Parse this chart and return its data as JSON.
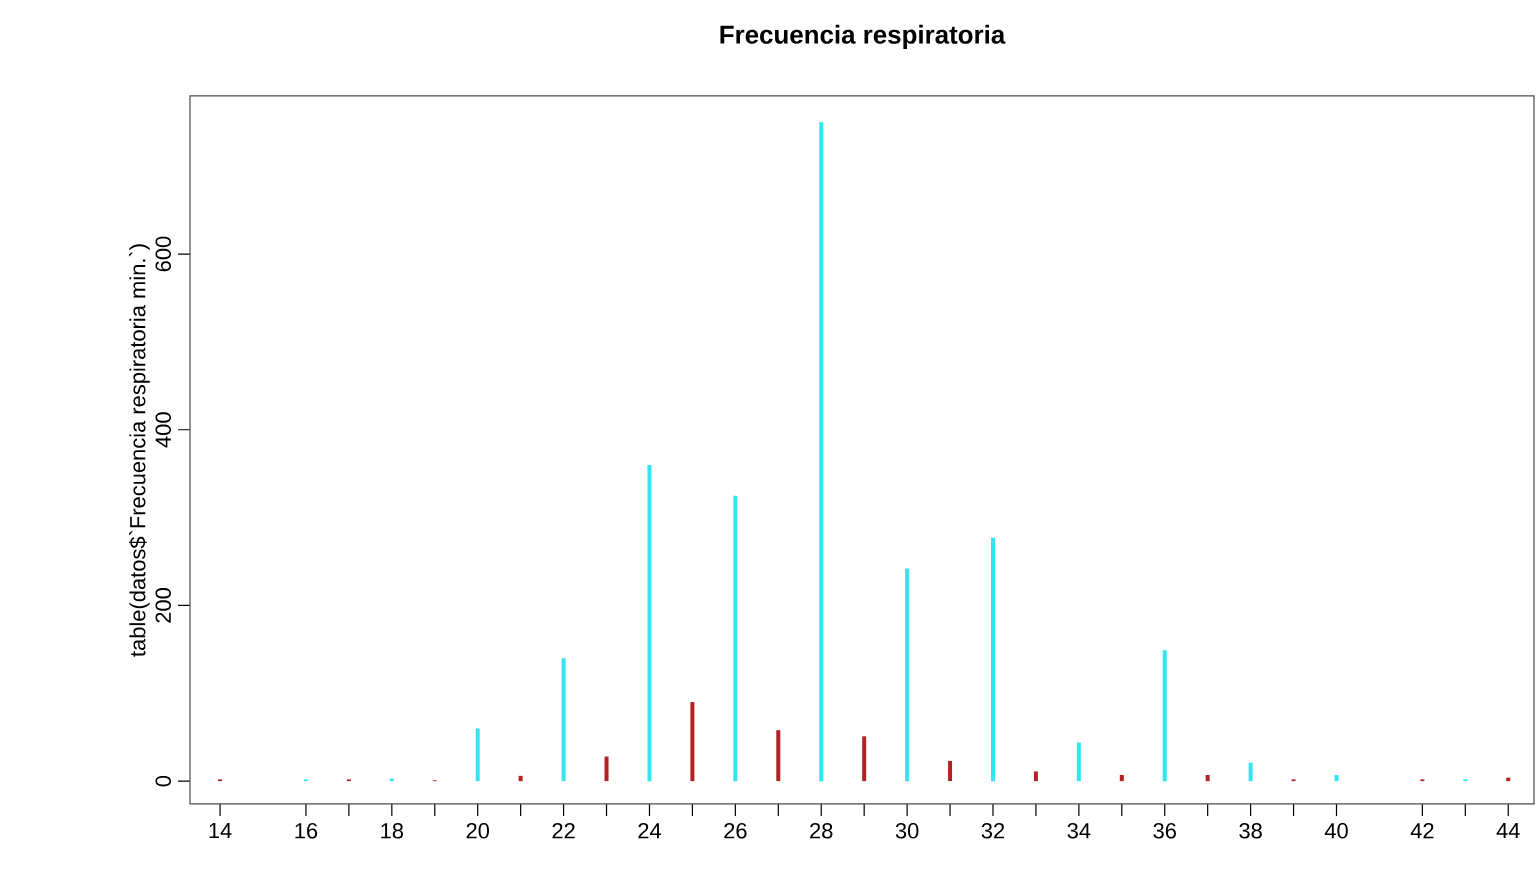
{
  "chart_data": {
    "type": "bar",
    "title": "Frecuencia respiratoria",
    "ylabel": "table(datos$`Frecuencia respiratoria min.`)",
    "x": [
      14,
      16,
      17,
      18,
      19,
      20,
      21,
      22,
      23,
      24,
      25,
      26,
      27,
      28,
      29,
      30,
      31,
      32,
      33,
      34,
      35,
      36,
      37,
      38,
      39,
      40,
      42,
      43,
      44
    ],
    "values": [
      2,
      2,
      2,
      3,
      1,
      60,
      6,
      140,
      28,
      360,
      90,
      325,
      58,
      750,
      51,
      242,
      23,
      277,
      11,
      44,
      7,
      149,
      7,
      21,
      2,
      7,
      2,
      2,
      4
    ],
    "colors": [
      "#b22222",
      "#33e5f0",
      "#b22222",
      "#33e5f0",
      "#b22222",
      "#33e5f0",
      "#b22222",
      "#33e5f0",
      "#b22222",
      "#33e5f0",
      "#b22222",
      "#33e5f0",
      "#b22222",
      "#33e5f0",
      "#b22222",
      "#33e5f0",
      "#b22222",
      "#33e5f0",
      "#b22222",
      "#33e5f0",
      "#b22222",
      "#33e5f0",
      "#b22222",
      "#33e5f0",
      "#b22222",
      "#33e5f0",
      "#b22222",
      "#33e5f0",
      "#b22222"
    ],
    "xlim": [
      13.3,
      44.6
    ],
    "ylim": [
      -26,
      780
    ],
    "xticks": [
      14,
      16,
      {
        "value": 17,
        "label": null
      },
      18,
      {
        "value": 19,
        "label": null
      },
      20,
      {
        "value": 21,
        "label": null
      },
      22,
      {
        "value": 23,
        "label": null
      },
      24,
      {
        "value": 25,
        "label": null
      },
      26,
      {
        "value": 27,
        "label": null
      },
      28,
      {
        "value": 29,
        "label": null
      },
      30,
      {
        "value": 31,
        "label": null
      },
      32,
      {
        "value": 33,
        "label": null
      },
      34,
      {
        "value": 35,
        "label": null
      },
      36,
      {
        "value": 37,
        "label": null
      },
      38,
      {
        "value": 39,
        "label": null
      },
      40,
      42,
      {
        "value": 43,
        "label": null
      },
      44
    ],
    "yticks": [
      0,
      200,
      400,
      600
    ]
  }
}
